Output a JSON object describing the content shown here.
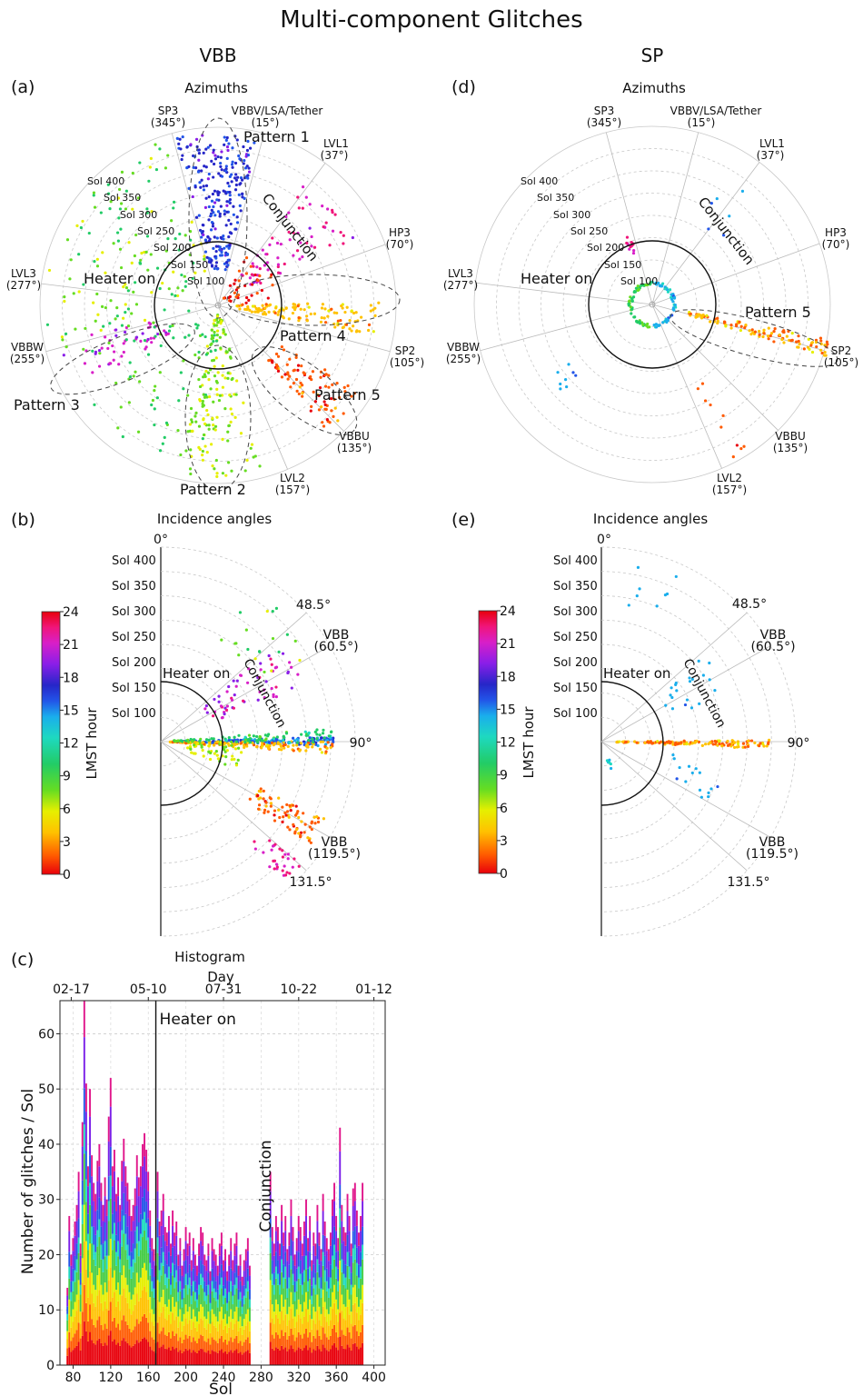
{
  "title": "Multi-component Glitches",
  "column_titles": {
    "left": "VBB",
    "right": "SP"
  },
  "panels": {
    "a": {
      "letter": "(a)",
      "subtitle": "Azimuths",
      "azimuth_labels": [
        {
          "name": "SP3",
          "angle": "(345°)"
        },
        {
          "name": "VBBV/LSA/Tether",
          "angle": "(15°)"
        },
        {
          "name": "LVL1",
          "angle": "(37°)"
        },
        {
          "name": "HP3",
          "angle": "(70°)"
        },
        {
          "name": "SP2",
          "angle": "(105°)"
        },
        {
          "name": "VBBU",
          "angle": "(135°)"
        },
        {
          "name": "LVL2",
          "angle": "(157°)"
        },
        {
          "name": "VBBW",
          "angle": "(255°)"
        },
        {
          "name": "LVL3",
          "angle": "(277°)"
        }
      ],
      "sol_rings": [
        "Sol 400",
        "Sol 350",
        "Sol 300",
        "Sol 250",
        "Sol 200",
        "Sol 150",
        "Sol 100"
      ],
      "annotations": [
        "Pattern 1",
        "Pattern 2",
        "Pattern 3",
        "Pattern 4",
        "Pattern 5",
        "Heater on",
        "Conjunction"
      ]
    },
    "d": {
      "letter": "(d)",
      "subtitle": "Azimuths",
      "annotations": [
        "Pattern 5",
        "Heater on",
        "Conjunction"
      ]
    },
    "b": {
      "letter": "(b)",
      "subtitle": "Incidence angles",
      "angle_labels": [
        "0°",
        "48.5°",
        "VBB",
        "(60.5°)",
        "90°",
        "VBB",
        "(119.5°)",
        "131.5°"
      ],
      "sol_labels": [
        "Sol 400",
        "Sol 350",
        "Sol 300",
        "Sol 250",
        "Sol 200",
        "Sol 150",
        "Sol 100"
      ],
      "annotations": [
        "Heater on",
        "Conjunction"
      ]
    },
    "e": {
      "letter": "(e)",
      "subtitle": "Incidence angles",
      "annotations": [
        "Heater on",
        "Conjunction"
      ]
    },
    "c": {
      "letter": "(c)",
      "subtitle": "Histogram"
    }
  },
  "colorbar": {
    "label": "LMST hour",
    "ticks": [
      "24",
      "21",
      "18",
      "15",
      "12",
      "9",
      "6",
      "3",
      "0"
    ]
  },
  "chart_data": {
    "type": "bar",
    "title": "Histogram",
    "xlabel": "Sol",
    "ylabel": "Number of glitches / Sol",
    "top_axis_label": "Day",
    "xlim": [
      66,
      412
    ],
    "ylim": [
      0,
      66
    ],
    "x_ticks": [
      80,
      120,
      160,
      200,
      240,
      280,
      320,
      360,
      400
    ],
    "y_ticks": [
      0,
      10,
      20,
      30,
      40,
      50,
      60
    ],
    "top_ticks": [
      {
        "label": "02-17",
        "sol": 78
      },
      {
        "label": "05-10",
        "sol": 160
      },
      {
        "label": "07-31",
        "sol": 240
      },
      {
        "label": "10-22",
        "sol": 320
      },
      {
        "label": "01-12",
        "sol": 400
      }
    ],
    "markers": [
      {
        "sol": 168,
        "label": "Heater on"
      },
      {
        "sol": 283,
        "label": "Conjunction"
      }
    ],
    "sols": [
      74,
      76,
      78,
      80,
      82,
      84,
      86,
      88,
      90,
      92,
      94,
      96,
      98,
      100,
      102,
      104,
      106,
      108,
      110,
      112,
      114,
      116,
      118,
      120,
      122,
      124,
      126,
      128,
      130,
      132,
      134,
      136,
      138,
      140,
      142,
      144,
      146,
      148,
      150,
      152,
      154,
      156,
      158,
      160,
      162,
      164,
      166,
      168,
      170,
      172,
      174,
      176,
      178,
      180,
      182,
      184,
      186,
      188,
      190,
      192,
      194,
      196,
      198,
      200,
      202,
      204,
      206,
      208,
      210,
      212,
      214,
      216,
      218,
      220,
      222,
      224,
      226,
      228,
      230,
      232,
      234,
      236,
      238,
      240,
      242,
      244,
      246,
      248,
      250,
      252,
      254,
      256,
      258,
      260,
      262,
      264,
      266,
      268,
      290,
      292,
      294,
      296,
      298,
      300,
      302,
      304,
      306,
      308,
      310,
      312,
      314,
      316,
      318,
      320,
      322,
      324,
      326,
      328,
      330,
      332,
      334,
      336,
      338,
      340,
      342,
      344,
      346,
      348,
      350,
      352,
      354,
      356,
      358,
      360,
      362,
      364,
      366,
      368,
      370,
      372,
      374,
      376,
      378,
      380,
      382,
      384,
      386,
      388
    ],
    "counts": [
      14,
      27,
      20,
      23,
      26,
      29,
      35,
      22,
      44,
      66,
      51,
      36,
      50,
      38,
      33,
      31,
      37,
      40,
      33,
      29,
      34,
      30,
      45,
      52,
      36,
      39,
      31,
      34,
      29,
      37,
      41,
      36,
      33,
      30,
      27,
      29,
      32,
      38,
      34,
      36,
      40,
      42,
      39,
      35,
      28,
      23,
      21,
      18,
      35,
      26,
      28,
      31,
      25,
      24,
      27,
      22,
      28,
      24,
      26,
      20,
      23,
      18,
      21,
      25,
      22,
      24,
      19,
      23,
      20,
      18,
      22,
      25,
      24,
      20,
      19,
      22,
      17,
      23,
      21,
      20,
      18,
      22,
      24,
      19,
      21,
      17,
      20,
      23,
      19,
      22,
      24,
      18,
      20,
      16,
      19,
      21,
      23,
      18,
      35,
      25,
      22,
      27,
      25,
      22,
      29,
      24,
      27,
      21,
      24,
      30,
      25,
      20,
      23,
      27,
      25,
      22,
      26,
      30,
      23,
      27,
      19,
      24,
      22,
      29,
      24,
      21,
      31,
      26,
      23,
      21,
      24,
      30,
      33,
      27,
      23,
      43,
      29,
      25,
      24,
      31,
      27,
      22,
      32,
      33,
      28,
      24,
      27,
      33
    ]
  }
}
